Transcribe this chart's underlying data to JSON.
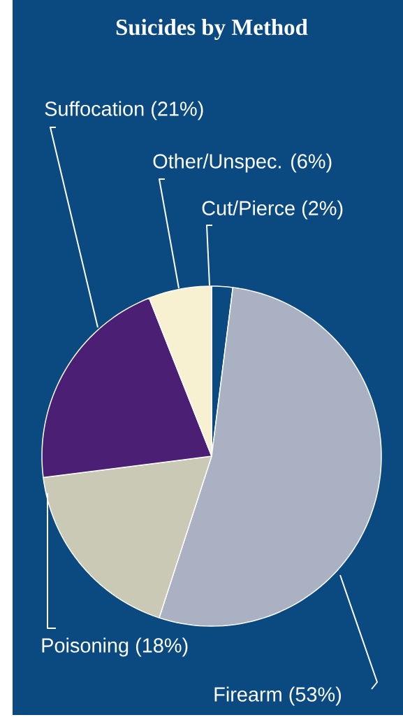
{
  "chart_data": {
    "type": "pie",
    "title": "Suicides by Method",
    "categories": [
      "Cut/Pierce",
      "Firearm",
      "Poisoning",
      "Suffocation",
      "Other/Unspec."
    ],
    "values": [
      2,
      53,
      18,
      21,
      6
    ],
    "value_labels": [
      "(2%)",
      "(53%)",
      "(18%)",
      "(21%)",
      "(6%)"
    ],
    "colors": [
      "#0b4a80",
      "#aab1c2",
      "#c9c9b6",
      "#4b1f73",
      "#f7f1d2"
    ]
  }
}
